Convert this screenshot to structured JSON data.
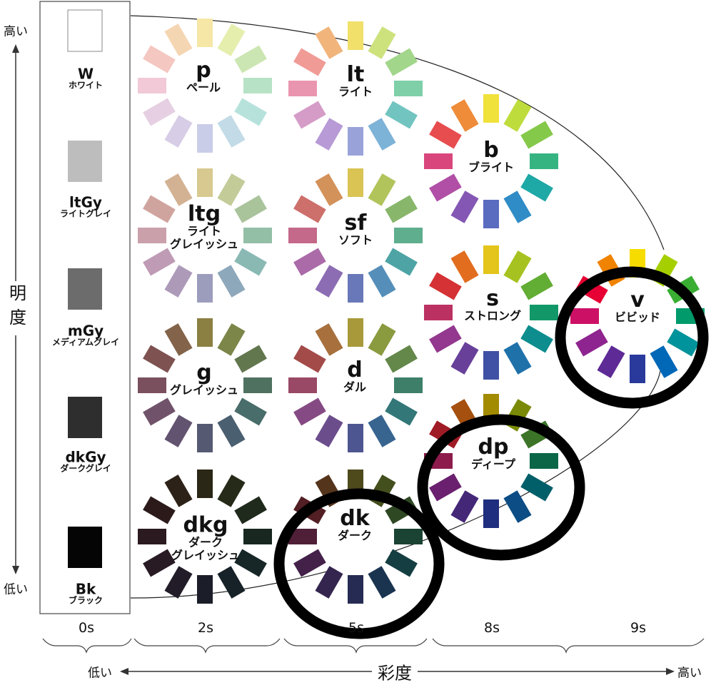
{
  "axes": {
    "lightness_label": "明度",
    "lightness_high": "高い",
    "lightness_low": "低い",
    "chroma_label": "彩度",
    "chroma_low": "低い",
    "chroma_high": "高い",
    "chroma_columns": [
      "0s",
      "2s",
      "5s",
      "8s",
      "9s"
    ]
  },
  "grays": [
    {
      "code": "W",
      "name": "ホワイト",
      "color": "#ffffff"
    },
    {
      "code": "ltGy",
      "name": "ライトグレイ",
      "color": "#bdbdbd"
    },
    {
      "code": "mGy",
      "name": "メディアムグレイ",
      "color": "#6c6c6c"
    },
    {
      "code": "dkGy",
      "name": "ダークグレイ",
      "color": "#2e2e2e"
    },
    {
      "code": "Bk",
      "name": "ブラック",
      "color": "#050505"
    }
  ],
  "tones": [
    {
      "code": "p",
      "name": [
        "ペール"
      ],
      "colors": [
        "#f6e7a6",
        "#e6eeae",
        "#cbe6b2",
        "#b8e2c6",
        "#b7e2dc",
        "#c2dbe7",
        "#c9cde8",
        "#d7cde6",
        "#e6cfe2",
        "#f2c9d6",
        "#f4c7c1",
        "#f5d6b2"
      ]
    },
    {
      "code": "lt",
      "name": [
        "ライト"
      ],
      "colors": [
        "#f1e06a",
        "#cde27d",
        "#a2d68b",
        "#7fcfa8",
        "#72c4c0",
        "#7eb3d8",
        "#9aa3d9",
        "#b79ad6",
        "#d59cc8",
        "#ea95b0",
        "#f09b96",
        "#f1b57c"
      ]
    },
    {
      "code": "b",
      "name": [
        "ブライト"
      ],
      "colors": [
        "#f1e13b",
        "#bedc3c",
        "#85c94b",
        "#35b482",
        "#1ea8a6",
        "#2f8cc6",
        "#5a6cc0",
        "#8457b4",
        "#b04fa5",
        "#d9467c",
        "#e74c4e",
        "#ee8c3a"
      ]
    },
    {
      "code": "ltg",
      "name": [
        "ライト",
        "グレイッシュ"
      ],
      "colors": [
        "#d7c98f",
        "#c3cc98",
        "#a9c39b",
        "#93bfa6",
        "#8ab9b4",
        "#8ea8bb",
        "#9c9dbd",
        "#ad9ab9",
        "#bf9bb5",
        "#caa0aa",
        "#d0a49e",
        "#d3b294"
      ]
    },
    {
      "code": "sf",
      "name": [
        "ソフト"
      ],
      "colors": [
        "#d9c454",
        "#b1c45b",
        "#88b66a",
        "#5fae8e",
        "#4ea4a5",
        "#558fb9",
        "#6978b8",
        "#8c6db3",
        "#ab6aa8",
        "#c4698a",
        "#cd6f6a",
        "#d3925a"
      ]
    },
    {
      "code": "s",
      "name": [
        "ストロング"
      ],
      "colors": [
        "#e3c51b",
        "#a6c220",
        "#62ad33",
        "#129769",
        "#0d8d8d",
        "#1f71aa",
        "#3f51a4",
        "#68409a",
        "#93388e",
        "#bb3262",
        "#d43234",
        "#e26d1f"
      ]
    },
    {
      "code": "v",
      "name": [
        "ビビッド"
      ],
      "colors": [
        "#f7dc00",
        "#a6cf00",
        "#39ae33",
        "#009a6b",
        "#00939b",
        "#0068b7",
        "#2a3a9c",
        "#5e2a95",
        "#8e248f",
        "#cc1066",
        "#e60033",
        "#f08300"
      ]
    },
    {
      "code": "g",
      "name": [
        "グレイッシュ"
      ],
      "colors": [
        "#8b8042",
        "#7b8648",
        "#63774f",
        "#4f7260",
        "#486d6a",
        "#4a5f70",
        "#555a72",
        "#625370",
        "#70526a",
        "#7a4f5e",
        "#7d5250",
        "#83644a"
      ]
    },
    {
      "code": "d",
      "name": [
        "ダル"
      ],
      "colors": [
        "#a89a3a",
        "#8a9a3f",
        "#63884a",
        "#3d7f68",
        "#337778",
        "#386590",
        "#4d5690",
        "#6b4d8c",
        "#854a83",
        "#994865",
        "#a34b49",
        "#a7703c"
      ]
    },
    {
      "code": "dp",
      "name": [
        "ディープ"
      ],
      "colors": [
        "#a28b00",
        "#7a8a07",
        "#3c7528",
        "#0b6648",
        "#005f69",
        "#0b4d84",
        "#1f2e7e",
        "#452777",
        "#6a206f",
        "#8d1c4c",
        "#9f1c26",
        "#a5500f"
      ]
    },
    {
      "code": "dkg",
      "name": [
        "ダーク",
        "グレイッシュ"
      ],
      "colors": [
        "#2b2716",
        "#262a18",
        "#1f2a1c",
        "#182821",
        "#172627",
        "#172128",
        "#1b1e28",
        "#221c28",
        "#281b24",
        "#2b1a20",
        "#2c1a1a",
        "#2d2218"
      ]
    },
    {
      "code": "dk",
      "name": [
        "ダーク"
      ],
      "colors": [
        "#4e4a1b",
        "#434f1d",
        "#2f4824",
        "#1a4333",
        "#143e42",
        "#1a3450",
        "#252b52",
        "#34254f",
        "#432149",
        "#4e1f37",
        "#521f24",
        "#55341c"
      ]
    }
  ]
}
